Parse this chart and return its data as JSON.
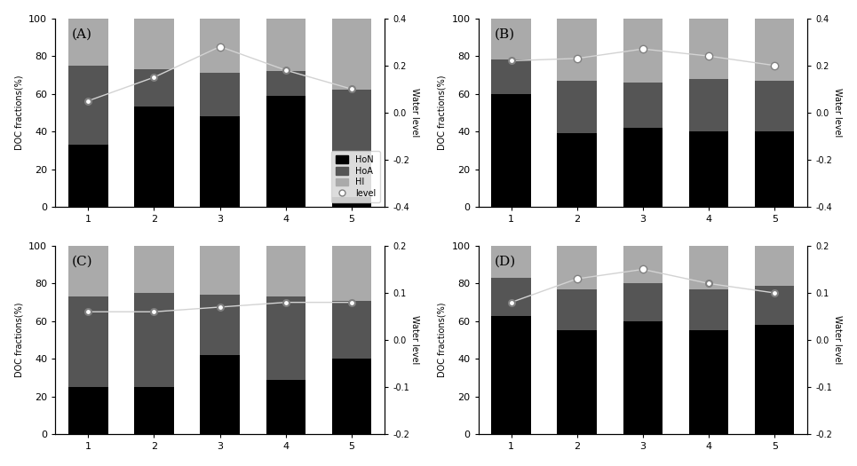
{
  "panels": [
    "A",
    "B",
    "C",
    "D"
  ],
  "subtitles": [
    "(A)",
    "(B)",
    "(C)",
    "(D)"
  ],
  "categories": [
    1,
    2,
    3,
    4,
    5
  ],
  "bar_data": {
    "A": {
      "HoN": [
        33,
        53,
        48,
        59,
        5
      ],
      "HoA": [
        42,
        20,
        23,
        13,
        57
      ],
      "HI": [
        25,
        27,
        29,
        28,
        38
      ]
    },
    "B": {
      "HoN": [
        60,
        39,
        42,
        40,
        40
      ],
      "HoA": [
        18,
        28,
        24,
        28,
        27
      ],
      "HI": [
        22,
        33,
        34,
        32,
        33
      ]
    },
    "C": {
      "HoN": [
        25,
        25,
        42,
        29,
        40
      ],
      "HoA": [
        48,
        50,
        32,
        44,
        31
      ],
      "HI": [
        27,
        25,
        26,
        27,
        29
      ]
    },
    "D": {
      "HoN": [
        63,
        55,
        60,
        55,
        58
      ],
      "HoA": [
        20,
        22,
        20,
        22,
        21
      ],
      "HI": [
        17,
        23,
        20,
        23,
        21
      ]
    }
  },
  "water_level": {
    "A": [
      0.05,
      0.15,
      0.28,
      0.18,
      0.1
    ],
    "B": [
      0.22,
      0.23,
      0.27,
      0.24,
      0.2
    ],
    "C": [
      0.06,
      0.06,
      0.07,
      0.08,
      0.08
    ],
    "D": [
      0.08,
      0.13,
      0.15,
      0.12,
      0.1
    ]
  },
  "water_level_open": {
    "A": [
      false,
      false,
      true,
      false,
      false
    ],
    "B": [
      false,
      true,
      true,
      true,
      true
    ],
    "C": [
      false,
      false,
      false,
      false,
      false
    ],
    "D": [
      false,
      true,
      true,
      false,
      false
    ]
  },
  "ylim_right": {
    "A": [
      -0.4,
      0.4
    ],
    "B": [
      -0.4,
      0.4
    ],
    "C": [
      -0.2,
      0.2
    ],
    "D": [
      -0.2,
      0.2
    ]
  },
  "right_yticks": {
    "A": [
      -0.4,
      -0.2,
      0.0,
      0.2,
      0.4
    ],
    "B": [
      -0.4,
      -0.2,
      0.0,
      0.2,
      0.4
    ],
    "C": [
      -0.2,
      -0.1,
      0.0,
      0.1,
      0.2
    ],
    "D": [
      -0.2,
      -0.1,
      0.0,
      0.1,
      0.2
    ]
  },
  "colors": {
    "HoN": "#000000",
    "HoA": "#555555",
    "HI": "#aaaaaa"
  },
  "bar_width": 0.6,
  "ylabel_left": "DOC fractions(%)",
  "ylabel_right": "Water level",
  "legend_labels": [
    "HoN",
    "HoA",
    "HI",
    "level"
  ]
}
